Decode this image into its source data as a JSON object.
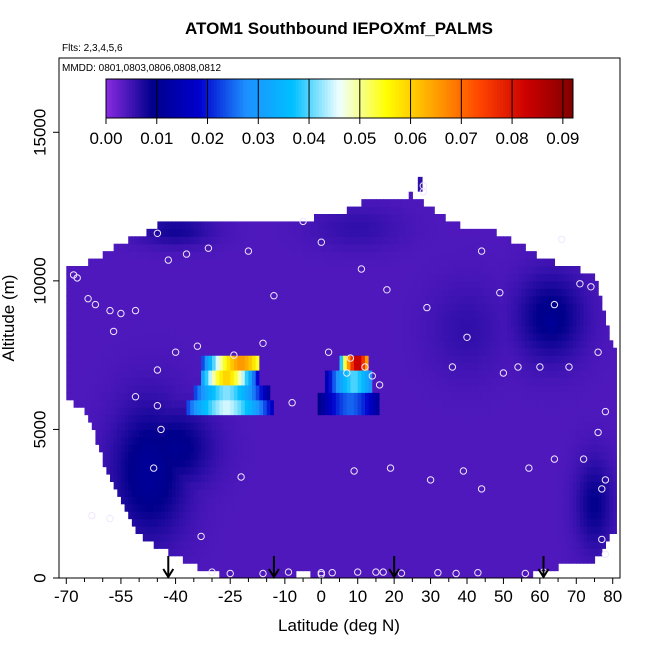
{
  "chart_data": {
    "type": "heatmap",
    "title": "ATOM1 Southbound IEPOXmf_PALMS",
    "subtitle_flights": "Flts: 2,3,4,5,6",
    "subtitle_dates": "MMDD: 0801,0803,0806,0808,0812",
    "xlabel": "Latitude (deg N)",
    "ylabel": "Altitude (m)",
    "xlim": [
      -72,
      82
    ],
    "ylim": [
      0,
      17500
    ],
    "x_ticks": [
      -70,
      -55,
      -40,
      -25,
      -10,
      0,
      10,
      20,
      30,
      40,
      50,
      60,
      70,
      80
    ],
    "x_tick_labels": [
      "-70",
      "-55",
      "-40",
      "-25",
      "-10",
      "0",
      "10",
      "20",
      "30",
      "40",
      "50",
      "60",
      "70",
      "80"
    ],
    "x_minor_ticks": [
      -65,
      -60,
      -50,
      -45,
      -35,
      -30,
      -20,
      -15,
      -5,
      5,
      15,
      25,
      35,
      45,
      55,
      65,
      75
    ],
    "y_ticks": [
      0,
      5000,
      10000,
      15000
    ],
    "y_tick_labels": [
      "0",
      "5000",
      "10000",
      "15000"
    ],
    "colorbar": {
      "min": 0.0,
      "max": 0.092,
      "ticks": [
        0.0,
        0.01,
        0.02,
        0.03,
        0.04,
        0.05,
        0.06,
        0.07,
        0.08,
        0.09
      ],
      "tick_labels": [
        "0.00",
        "0.01",
        "0.02",
        "0.03",
        "0.04",
        "0.05",
        "0.06",
        "0.07",
        "0.08",
        "0.09"
      ],
      "colors": [
        "#8A2BE2",
        "#00008B",
        "#0000CD",
        "#1E90FF",
        "#00BFFF",
        "#F0FFFF",
        "#FFFF00",
        "#FFA500",
        "#FF4500",
        "#CC0000",
        "#800000"
      ]
    },
    "background_value": 0.004,
    "envelope": [
      {
        "x": -69,
        "bottom": 6000,
        "top": 10400
      },
      {
        "x": -64,
        "bottom": 5500,
        "top": 10600
      },
      {
        "x": -60,
        "bottom": 4000,
        "top": 10900
      },
      {
        "x": -55,
        "bottom": 2500,
        "top": 11300
      },
      {
        "x": -50,
        "bottom": 1500,
        "top": 11500
      },
      {
        "x": -45,
        "bottom": 1000,
        "top": 11900
      },
      {
        "x": -40,
        "bottom": 800,
        "top": 12000
      },
      {
        "x": -35,
        "bottom": 450,
        "top": 12000
      },
      {
        "x": -30,
        "bottom": 150,
        "top": 11900
      },
      {
        "x": -25,
        "bottom": 80,
        "top": 11900
      },
      {
        "x": -20,
        "bottom": 80,
        "top": 12000
      },
      {
        "x": -15,
        "bottom": 80,
        "top": 12000
      },
      {
        "x": -10,
        "bottom": 80,
        "top": 12000
      },
      {
        "x": -5,
        "bottom": 150,
        "top": 12000
      },
      {
        "x": 0,
        "bottom": 100,
        "top": 12200
      },
      {
        "x": 5,
        "bottom": 80,
        "top": 12200
      },
      {
        "x": 10,
        "bottom": 80,
        "top": 12600
      },
      {
        "x": 15,
        "bottom": 80,
        "top": 12700
      },
      {
        "x": 20,
        "bottom": 80,
        "top": 12800
      },
      {
        "x": 25,
        "bottom": 80,
        "top": 12900
      },
      {
        "x": 30,
        "bottom": 80,
        "top": 12500
      },
      {
        "x": 35,
        "bottom": 80,
        "top": 12000
      },
      {
        "x": 40,
        "bottom": 80,
        "top": 11800
      },
      {
        "x": 45,
        "bottom": 80,
        "top": 11800
      },
      {
        "x": 50,
        "bottom": 80,
        "top": 11500
      },
      {
        "x": 55,
        "bottom": 80,
        "top": 11200
      },
      {
        "x": 60,
        "bottom": 150,
        "top": 10800
      },
      {
        "x": 65,
        "bottom": 400,
        "top": 10600
      },
      {
        "x": 70,
        "bottom": 500,
        "top": 10400
      },
      {
        "x": 75,
        "bottom": 600,
        "top": 10200
      },
      {
        "x": 80,
        "bottom": 1500,
        "top": 7800
      }
    ],
    "plumes": [
      {
        "cx": -47,
        "cy": 3600,
        "rx": 10,
        "ry": 2200,
        "value": 0.011
      },
      {
        "cx": -40,
        "cy": 4400,
        "rx": 10,
        "ry": 1300,
        "value": 0.01
      },
      {
        "cx": 63,
        "cy": 8800,
        "rx": 9,
        "ry": 1400,
        "value": 0.01
      },
      {
        "cx": 63,
        "cy": 8600,
        "rx": 4,
        "ry": 700,
        "value": 0.011
      },
      {
        "cx": -40,
        "cy": 11700,
        "rx": 10,
        "ry": 500,
        "value": 0.008
      },
      {
        "cx": 75,
        "cy": 2500,
        "rx": 5,
        "ry": 1500,
        "value": 0.009
      },
      {
        "cx": 40,
        "cy": 8400,
        "rx": 10,
        "ry": 1500,
        "value": 0.006
      },
      {
        "cx": 10,
        "cy": 11800,
        "rx": 12,
        "ry": 700,
        "value": 0.006
      }
    ],
    "hotspots": [
      {
        "x0": -37,
        "x1": -13,
        "y_bottom": 5500,
        "y_top": 6000,
        "peak_x": -26,
        "peak_value": 0.045,
        "edge_value": 0.015
      },
      {
        "x0": -35,
        "x1": -14,
        "y_bottom": 6000,
        "y_top": 6500,
        "peak_x": -26,
        "peak_value": 0.042,
        "edge_value": 0.01
      },
      {
        "x0": -33,
        "x1": -17,
        "y_bottom": 6500,
        "y_top": 7000,
        "peak_x": -26,
        "peak_value": 0.06,
        "edge_value": 0.015
      },
      {
        "x0": -33,
        "x1": -17,
        "y_bottom": 7000,
        "y_top": 7500,
        "peak_x": -22,
        "peak_value": 0.066,
        "edge_value": 0.02
      },
      {
        "x0": -1,
        "x1": 16,
        "y_bottom": 5600,
        "y_top": 6300,
        "peak_x": 8,
        "peak_value": 0.025,
        "edge_value": 0.008
      },
      {
        "x0": 1,
        "x1": 14,
        "y_bottom": 6300,
        "y_top": 7000,
        "peak_x": 9,
        "peak_value": 0.04,
        "edge_value": 0.012
      },
      {
        "x0": 5,
        "x1": 13,
        "y_bottom": 7000,
        "y_top": 7500,
        "peak_x": 10,
        "peak_value": 0.085,
        "edge_value": 0.03
      }
    ],
    "sample_points": [
      [
        -68,
        10200
      ],
      [
        -67,
        10100
      ],
      [
        -64,
        9400
      ],
      [
        -62,
        9200
      ],
      [
        -58,
        9000
      ],
      [
        -57,
        8300
      ],
      [
        -55,
        8900
      ],
      [
        -51,
        9000
      ],
      [
        -45,
        11600
      ],
      [
        -42,
        10700
      ],
      [
        -37,
        10900
      ],
      [
        -31,
        11100
      ],
      [
        -20,
        11000
      ],
      [
        -5,
        12000
      ],
      [
        0,
        11300
      ],
      [
        -40,
        7600
      ],
      [
        -34,
        7800
      ],
      [
        -24,
        7500
      ],
      [
        -16,
        7900
      ],
      [
        -45,
        7000
      ],
      [
        -51,
        6100
      ],
      [
        -45,
        5800
      ],
      [
        -44,
        5000
      ],
      [
        -46,
        3700
      ],
      [
        -22,
        3400
      ],
      [
        -33,
        1400
      ],
      [
        -63,
        2100
      ],
      [
        -58,
        2000
      ],
      [
        -8,
        5900
      ],
      [
        2,
        7600
      ],
      [
        7,
        6900
      ],
      [
        8,
        7400
      ],
      [
        12,
        7100
      ],
      [
        14,
        6800
      ],
      [
        16,
        6500
      ],
      [
        11,
        10400
      ],
      [
        18,
        9700
      ],
      [
        29,
        9100
      ],
      [
        40,
        8100
      ],
      [
        44,
        11000
      ],
      [
        49,
        9600
      ],
      [
        50,
        6900
      ],
      [
        36,
        7100
      ],
      [
        39,
        3600
      ],
      [
        44,
        3000
      ],
      [
        30,
        3300
      ],
      [
        19,
        3700
      ],
      [
        9,
        3600
      ],
      [
        54,
        7100
      ],
      [
        60,
        7100
      ],
      [
        64,
        9200
      ],
      [
        68,
        7100
      ],
      [
        66,
        11400
      ],
      [
        71,
        9900
      ],
      [
        74,
        9800
      ],
      [
        76,
        7600
      ],
      [
        78,
        5600
      ],
      [
        76,
        4900
      ],
      [
        72,
        4000
      ],
      [
        77,
        3000
      ],
      [
        78,
        3300
      ],
      [
        57,
        3700
      ],
      [
        64,
        4000
      ],
      [
        77,
        1300
      ],
      [
        78,
        800
      ],
      [
        -30,
        200
      ],
      [
        -25,
        150
      ],
      [
        -16,
        150
      ],
      [
        -9,
        200
      ],
      [
        0,
        180
      ],
      [
        0,
        120
      ],
      [
        3,
        180
      ],
      [
        10,
        200
      ],
      [
        15,
        200
      ],
      [
        17,
        200
      ],
      [
        22,
        160
      ],
      [
        32,
        180
      ],
      [
        37,
        150
      ],
      [
        43,
        180
      ],
      [
        56,
        150
      ],
      [
        61,
        200
      ],
      [
        -13,
        9500
      ],
      [
        28,
        13200
      ],
      [
        28,
        13000
      ]
    ],
    "arrows": [
      -42,
      -13,
      20,
      61
    ]
  }
}
